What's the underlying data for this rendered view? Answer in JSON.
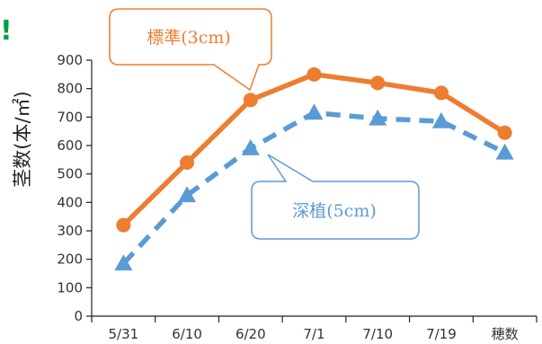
{
  "chart_data": {
    "type": "line",
    "categories": [
      "5/31",
      "6/10",
      "6/20",
      "7/1",
      "7/10",
      "7/19",
      "穂数"
    ],
    "ylabel": "茎数(本/㎡)",
    "ylim": [
      0,
      900
    ],
    "yticks": [
      "0",
      "100",
      "200",
      "300",
      "400",
      "500",
      "600",
      "700",
      "800",
      "900"
    ],
    "grid": false,
    "series": [
      {
        "name": "標準(3cm)",
        "values": [
          320,
          540,
          760,
          850,
          820,
          785,
          645
        ],
        "color": "#ED7D31",
        "line_style": "solid",
        "marker": "circle"
      },
      {
        "name": "深植(5cm)",
        "values": [
          185,
          425,
          590,
          715,
          695,
          685,
          575
        ],
        "color": "#5B9BD5",
        "line_style": "dashed",
        "marker": "triangle"
      }
    ]
  },
  "corner_mark": "!",
  "corner_mark_color": "#00A040"
}
